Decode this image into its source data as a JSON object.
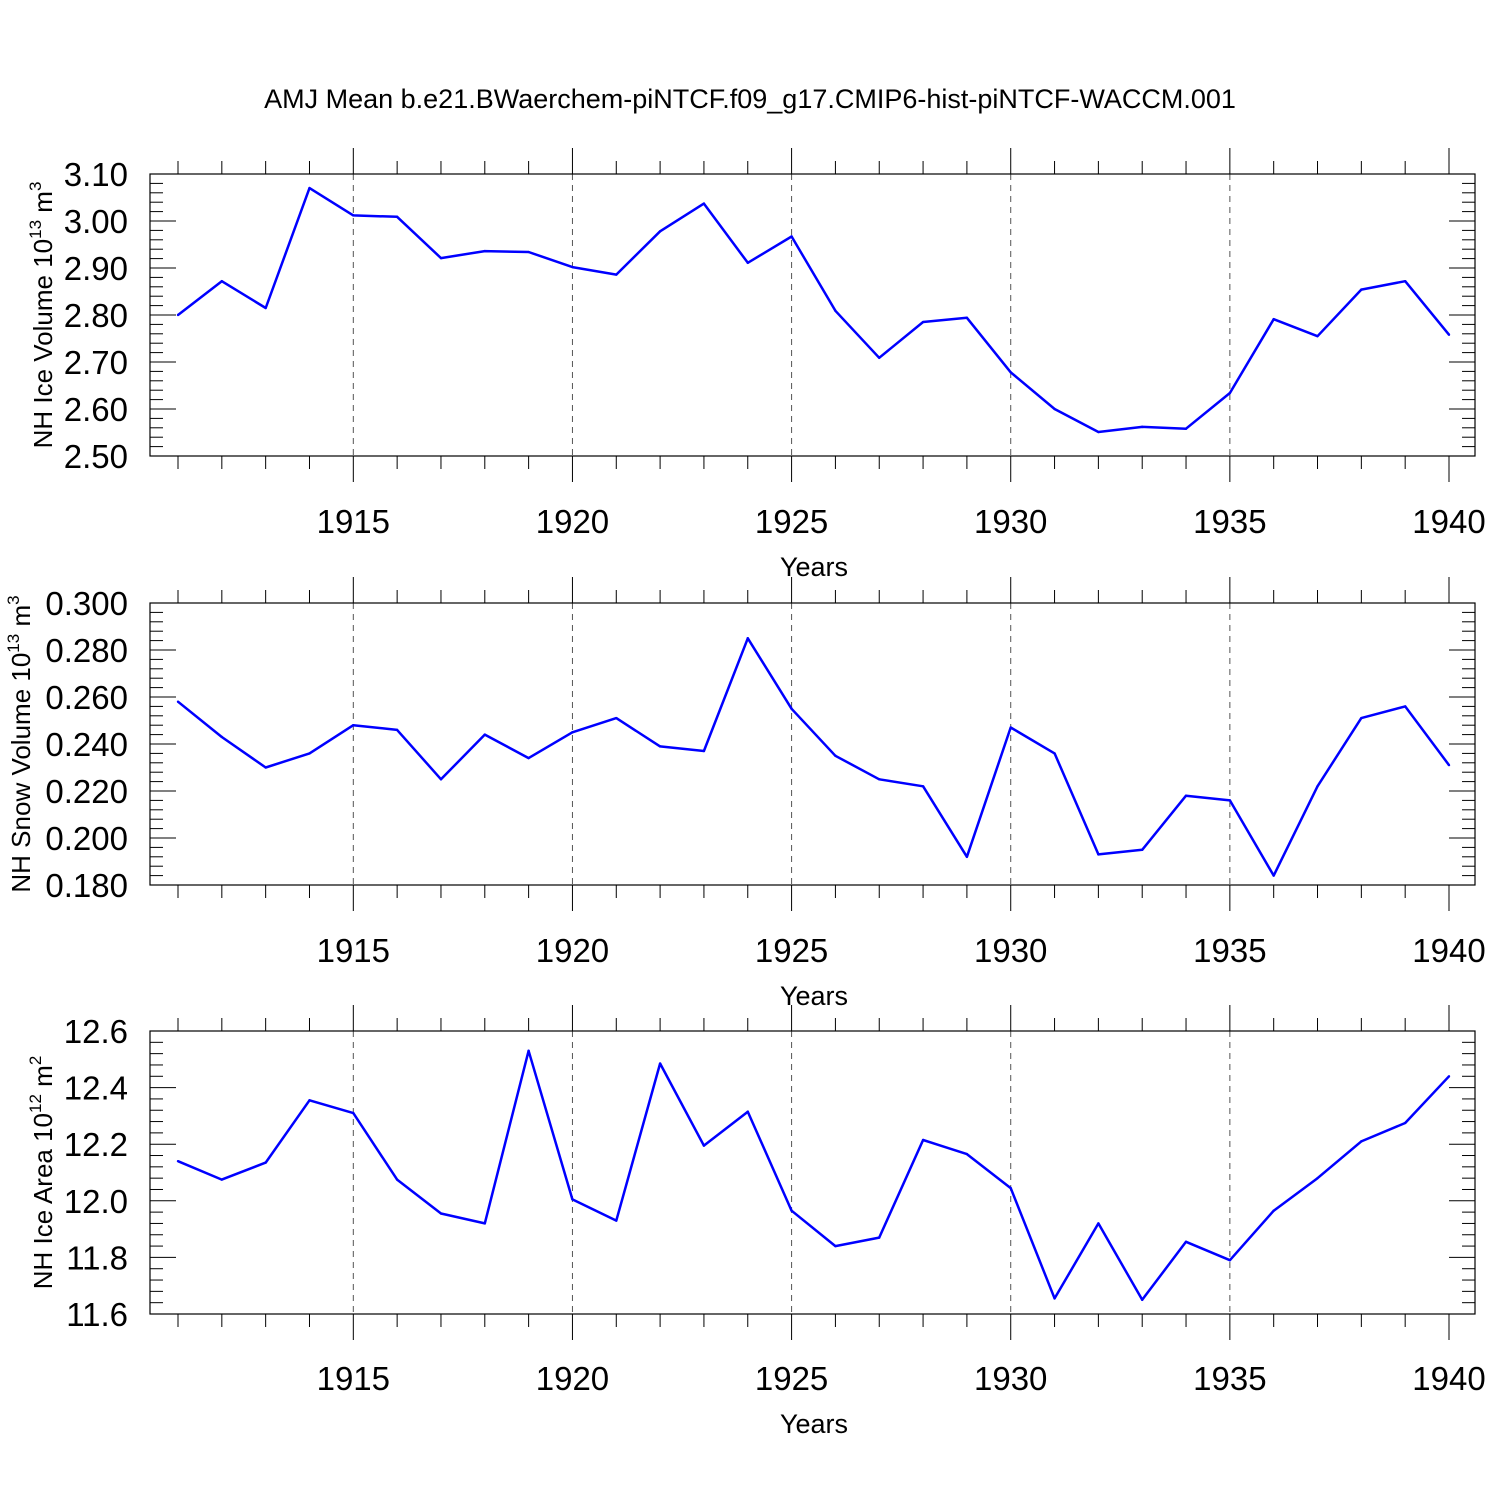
{
  "title": "AMJ Mean b.e21.BWaerchem-piNTCF.f09_g17.CMIP6-hist-piNTCF-WACCM.001",
  "chart_data": [
    {
      "type": "line",
      "xlabel": "Years",
      "ylabel": {
        "text": "NH Ice Volume 10",
        "sup1": "13",
        "mid": " m",
        "sup2": "3"
      },
      "xlim": [
        1911,
        1940
      ],
      "ylim": [
        2.5,
        3.1
      ],
      "xticks": [
        "1915",
        "1920",
        "1925",
        "1930",
        "1935",
        "1940"
      ],
      "yticks": [
        "2.50",
        "2.60",
        "2.70",
        "2.80",
        "2.90",
        "3.00",
        "3.10"
      ],
      "x": [
        1911,
        1912,
        1913,
        1914,
        1915,
        1916,
        1917,
        1918,
        1919,
        1920,
        1921,
        1922,
        1923,
        1924,
        1925,
        1926,
        1927,
        1928,
        1929,
        1930,
        1931,
        1932,
        1933,
        1934,
        1935,
        1936,
        1937,
        1938,
        1939,
        1940
      ],
      "values": [
        2.8,
        2.872,
        2.815,
        3.07,
        3.012,
        3.009,
        2.921,
        2.936,
        2.934,
        2.902,
        2.886,
        2.978,
        3.037,
        2.911,
        2.967,
        2.809,
        2.709,
        2.785,
        2.794,
        2.678,
        2.6,
        2.551,
        2.562,
        2.558,
        2.634,
        2.791,
        2.755,
        2.854,
        2.872,
        2.758
      ],
      "color": "#0000ff",
      "grid": "dashed vertical at major x ticks"
    },
    {
      "type": "line",
      "xlabel": "Years",
      "ylabel": {
        "text": "NH Snow Volume 10",
        "sup1": "13",
        "mid": " m",
        "sup2": "3"
      },
      "xlim": [
        1911,
        1940
      ],
      "ylim": [
        0.18,
        0.3
      ],
      "xticks": [
        "1915",
        "1920",
        "1925",
        "1930",
        "1935",
        "1940"
      ],
      "yticks": [
        "0.180",
        "0.200",
        "0.220",
        "0.240",
        "0.260",
        "0.280",
        "0.300"
      ],
      "x": [
        1911,
        1912,
        1913,
        1914,
        1915,
        1916,
        1917,
        1918,
        1919,
        1920,
        1921,
        1922,
        1923,
        1924,
        1925,
        1926,
        1927,
        1928,
        1929,
        1930,
        1931,
        1932,
        1933,
        1934,
        1935,
        1936,
        1937,
        1938,
        1939,
        1940
      ],
      "values": [
        0.258,
        0.243,
        0.23,
        0.236,
        0.248,
        0.246,
        0.225,
        0.244,
        0.234,
        0.245,
        0.251,
        0.239,
        0.237,
        0.285,
        0.255,
        0.235,
        0.225,
        0.222,
        0.192,
        0.247,
        0.236,
        0.193,
        0.195,
        0.218,
        0.216,
        0.184,
        0.222,
        0.251,
        0.256,
        0.231
      ],
      "color": "#0000ff",
      "grid": "dashed vertical at major x ticks"
    },
    {
      "type": "line",
      "xlabel": "Years",
      "ylabel": {
        "text": "NH Ice Area 10",
        "sup1": "12",
        "mid": " m",
        "sup2": "2"
      },
      "xlim": [
        1911,
        1940
      ],
      "ylim": [
        11.6,
        12.6
      ],
      "xticks": [
        "1915",
        "1920",
        "1925",
        "1930",
        "1935",
        "1940"
      ],
      "yticks": [
        "11.6",
        "11.8",
        "12.0",
        "12.2",
        "12.4",
        "12.6"
      ],
      "x": [
        1911,
        1912,
        1913,
        1914,
        1915,
        1916,
        1917,
        1918,
        1919,
        1920,
        1921,
        1922,
        1923,
        1924,
        1925,
        1926,
        1927,
        1928,
        1929,
        1930,
        1931,
        1932,
        1933,
        1934,
        1935,
        1936,
        1937,
        1938,
        1939,
        1940
      ],
      "values": [
        12.14,
        12.075,
        12.135,
        12.355,
        12.31,
        12.075,
        11.955,
        11.92,
        12.53,
        12.005,
        11.93,
        12.485,
        12.195,
        12.315,
        11.965,
        11.84,
        11.87,
        12.215,
        12.165,
        12.045,
        11.655,
        11.92,
        11.65,
        11.855,
        11.79,
        11.965,
        12.08,
        12.21,
        12.275,
        12.44
      ],
      "color": "#0000ff",
      "grid": "dashed vertical at major x ticks"
    }
  ]
}
